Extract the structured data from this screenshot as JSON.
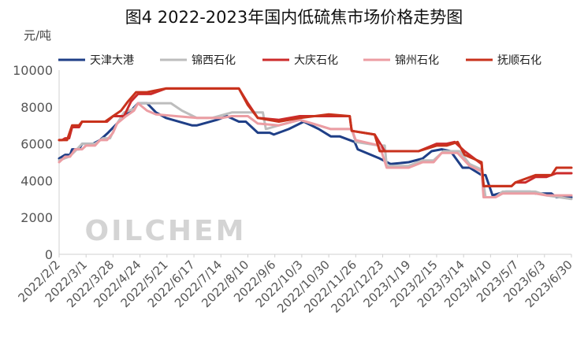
{
  "chart_data": {
    "type": "line",
    "title": "图4 2022-2023年国内低硫焦市场价格走势图",
    "ylabel": "元/吨",
    "xlabel": "",
    "ylim": [
      0,
      10000
    ],
    "yticks": [
      0,
      2000,
      4000,
      6000,
      8000,
      10000
    ],
    "xlim": [
      "2022-02-02",
      "2023-06-30"
    ],
    "xticks": [
      "2022/2/2",
      "2022/3/1",
      "2022/3/28",
      "2022/4/24",
      "2022/5/21",
      "2022/6/17",
      "2022/7/14",
      "2022/8/10",
      "2022/9/6",
      "2022/10/3",
      "2022/10/30",
      "2022/11/26",
      "2022/12/23",
      "2023/1/19",
      "2023/2/15",
      "2023/3/14",
      "2023/4/10",
      "2023/5/7",
      "2023/6/3",
      "2023/6/30"
    ],
    "watermark": "OILCHEM",
    "legend_position": "top",
    "grid": false,
    "series": [
      {
        "name": "天津大港",
        "color": "#1f3f87",
        "points": [
          [
            "2022-02-02",
            5200
          ],
          [
            "2022-02-08",
            5400
          ],
          [
            "2022-02-13",
            5400
          ],
          [
            "2022-02-15",
            5700
          ],
          [
            "2022-02-22",
            5700
          ],
          [
            "2022-02-25",
            6000
          ],
          [
            "2022-03-08",
            6000
          ],
          [
            "2022-03-15",
            6200
          ],
          [
            "2022-03-23",
            6600
          ],
          [
            "2022-04-01",
            7100
          ],
          [
            "2022-04-08",
            7500
          ],
          [
            "2022-04-15",
            7800
          ],
          [
            "2022-04-22",
            8200
          ],
          [
            "2022-05-01",
            8200
          ],
          [
            "2022-05-10",
            7700
          ],
          [
            "2022-05-20",
            7400
          ],
          [
            "2022-06-15",
            7000
          ],
          [
            "2022-06-20",
            7000
          ],
          [
            "2022-07-10",
            7300
          ],
          [
            "2022-07-20",
            7500
          ],
          [
            "2022-08-01",
            7200
          ],
          [
            "2022-08-08",
            7200
          ],
          [
            "2022-08-20",
            6600
          ],
          [
            "2022-09-01",
            6600
          ],
          [
            "2022-09-05",
            6500
          ],
          [
            "2022-09-20",
            6800
          ],
          [
            "2022-10-05",
            7200
          ],
          [
            "2022-10-20",
            6800
          ],
          [
            "2022-11-01",
            6400
          ],
          [
            "2022-11-10",
            6400
          ],
          [
            "2022-11-25",
            6100
          ],
          [
            "2022-11-28",
            5700
          ],
          [
            "2022-12-20",
            5200
          ],
          [
            "2022-12-31",
            4900
          ],
          [
            "2023-01-18",
            5000
          ],
          [
            "2023-02-01",
            5200
          ],
          [
            "2023-02-10",
            5600
          ],
          [
            "2023-02-20",
            5700
          ],
          [
            "2023-03-01",
            5600
          ],
          [
            "2023-03-13",
            4700
          ],
          [
            "2023-03-20",
            4700
          ],
          [
            "2023-04-01",
            4300
          ],
          [
            "2023-04-05",
            4300
          ],
          [
            "2023-04-12",
            3200
          ],
          [
            "2023-04-25",
            3400
          ],
          [
            "2023-05-20",
            3400
          ],
          [
            "2023-05-25",
            3300
          ],
          [
            "2023-06-10",
            3300
          ],
          [
            "2023-06-15",
            3100
          ],
          [
            "2023-06-30",
            3100
          ]
        ]
      },
      {
        "name": "锦西石化",
        "color": "#bdbdbd",
        "points": [
          [
            "2022-02-02",
            5100
          ],
          [
            "2022-02-12",
            5300
          ],
          [
            "2022-02-18",
            5600
          ],
          [
            "2022-02-25",
            6000
          ],
          [
            "2022-03-10",
            6000
          ],
          [
            "2022-03-18",
            6300
          ],
          [
            "2022-03-25",
            6300
          ],
          [
            "2022-04-01",
            7100
          ],
          [
            "2022-04-08",
            7700
          ],
          [
            "2022-04-18",
            7900
          ],
          [
            "2022-04-22",
            8200
          ],
          [
            "2022-05-25",
            8200
          ],
          [
            "2022-06-05",
            7800
          ],
          [
            "2022-06-20",
            7400
          ],
          [
            "2022-07-05",
            7400
          ],
          [
            "2022-07-25",
            7700
          ],
          [
            "2022-08-25",
            7700
          ],
          [
            "2022-08-28",
            6800
          ],
          [
            "2022-09-10",
            7000
          ],
          [
            "2022-10-01",
            7300
          ],
          [
            "2022-11-01",
            6800
          ],
          [
            "2022-11-22",
            6800
          ],
          [
            "2022-11-26",
            6100
          ],
          [
            "2022-12-20",
            5900
          ],
          [
            "2022-12-25",
            5900
          ],
          [
            "2022-12-27",
            4800
          ],
          [
            "2023-01-18",
            4800
          ],
          [
            "2023-02-01",
            5100
          ],
          [
            "2023-02-12",
            5100
          ],
          [
            "2023-02-22",
            5600
          ],
          [
            "2023-03-10",
            5600
          ],
          [
            "2023-03-20",
            4900
          ],
          [
            "2023-04-01",
            4600
          ],
          [
            "2023-04-05",
            3100
          ],
          [
            "2023-04-15",
            3100
          ],
          [
            "2023-04-22",
            3400
          ],
          [
            "2023-05-25",
            3400
          ],
          [
            "2023-06-05",
            3200
          ],
          [
            "2023-06-30",
            3000
          ]
        ]
      },
      {
        "name": "大庆石化",
        "color": "#cc2b2b",
        "points": [
          [
            "2022-02-02",
            6200
          ],
          [
            "2022-02-05",
            6200
          ],
          [
            "2022-02-08",
            6300
          ],
          [
            "2022-02-12",
            6300
          ],
          [
            "2022-02-15",
            6900
          ],
          [
            "2022-02-22",
            6900
          ],
          [
            "2022-02-25",
            7200
          ],
          [
            "2022-03-22",
            7200
          ],
          [
            "2022-03-28",
            7500
          ],
          [
            "2022-04-08",
            7500
          ],
          [
            "2022-04-15",
            8300
          ],
          [
            "2022-04-22",
            8700
          ],
          [
            "2022-05-05",
            8700
          ],
          [
            "2022-05-20",
            9000
          ],
          [
            "2022-08-01",
            9000
          ],
          [
            "2022-08-10",
            8200
          ],
          [
            "2022-08-20",
            7400
          ],
          [
            "2022-09-10",
            7300
          ],
          [
            "2022-10-01",
            7500
          ],
          [
            "2022-10-30",
            7500
          ],
          [
            "2022-11-20",
            7500
          ],
          [
            "2022-11-22",
            6700
          ],
          [
            "2022-12-15",
            6500
          ],
          [
            "2022-12-25",
            5600
          ],
          [
            "2023-01-28",
            5600
          ],
          [
            "2023-02-15",
            6000
          ],
          [
            "2023-02-25",
            6000
          ],
          [
            "2023-03-05",
            6100
          ],
          [
            "2023-03-15",
            5600
          ],
          [
            "2023-04-01",
            4900
          ],
          [
            "2023-04-03",
            3700
          ],
          [
            "2023-05-01",
            3700
          ],
          [
            "2023-05-05",
            3900
          ],
          [
            "2023-05-15",
            3900
          ],
          [
            "2023-05-25",
            4200
          ],
          [
            "2023-06-05",
            4200
          ],
          [
            "2023-06-15",
            4400
          ],
          [
            "2023-06-30",
            4400
          ]
        ]
      },
      {
        "name": "锦州石化",
        "color": "#ec9da3",
        "points": [
          [
            "2022-02-02",
            5000
          ],
          [
            "2022-02-08",
            5300
          ],
          [
            "2022-02-13",
            5300
          ],
          [
            "2022-02-18",
            5700
          ],
          [
            "2022-02-25",
            5700
          ],
          [
            "2022-03-01",
            5900
          ],
          [
            "2022-03-10",
            5900
          ],
          [
            "2022-03-15",
            6200
          ],
          [
            "2022-03-22",
            6200
          ],
          [
            "2022-03-28",
            6600
          ],
          [
            "2022-04-01",
            7100
          ],
          [
            "2022-04-10",
            7500
          ],
          [
            "2022-04-18",
            7800
          ],
          [
            "2022-04-22",
            8200
          ],
          [
            "2022-05-01",
            7800
          ],
          [
            "2022-05-10",
            7600
          ],
          [
            "2022-05-30",
            7500
          ],
          [
            "2022-06-20",
            7400
          ],
          [
            "2022-07-15",
            7400
          ],
          [
            "2022-07-25",
            7500
          ],
          [
            "2022-08-10",
            7500
          ],
          [
            "2022-08-20",
            7100
          ],
          [
            "2022-09-10",
            7000
          ],
          [
            "2022-10-01",
            7300
          ],
          [
            "2022-10-20",
            7000
          ],
          [
            "2022-11-01",
            6800
          ],
          [
            "2022-11-22",
            6800
          ],
          [
            "2022-11-26",
            6200
          ],
          [
            "2022-12-20",
            5900
          ],
          [
            "2022-12-27",
            4700
          ],
          [
            "2023-01-18",
            4700
          ],
          [
            "2023-02-01",
            5000
          ],
          [
            "2023-02-12",
            5000
          ],
          [
            "2023-02-20",
            5500
          ],
          [
            "2023-03-08",
            5500
          ],
          [
            "2023-03-20",
            4800
          ],
          [
            "2023-04-01",
            4500
          ],
          [
            "2023-04-03",
            3100
          ],
          [
            "2023-04-15",
            3100
          ],
          [
            "2023-04-22",
            3300
          ],
          [
            "2023-05-25",
            3300
          ],
          [
            "2023-06-05",
            3200
          ],
          [
            "2023-06-30",
            3200
          ]
        ]
      },
      {
        "name": "抚顺石化",
        "color": "#c8321c",
        "points": [
          [
            "2022-02-02",
            6200
          ],
          [
            "2022-02-10",
            6200
          ],
          [
            "2022-02-15",
            7000
          ],
          [
            "2022-02-22",
            7000
          ],
          [
            "2022-02-25",
            7200
          ],
          [
            "2022-03-20",
            7200
          ],
          [
            "2022-03-28",
            7500
          ],
          [
            "2022-04-05",
            7800
          ],
          [
            "2022-04-12",
            8300
          ],
          [
            "2022-04-20",
            8800
          ],
          [
            "2022-05-01",
            8800
          ],
          [
            "2022-05-20",
            9000
          ],
          [
            "2022-08-01",
            9000
          ],
          [
            "2022-08-10",
            8100
          ],
          [
            "2022-08-20",
            7400
          ],
          [
            "2022-09-10",
            7200
          ],
          [
            "2022-10-01",
            7400
          ],
          [
            "2022-10-30",
            7600
          ],
          [
            "2022-11-20",
            7500
          ],
          [
            "2022-11-22",
            6700
          ],
          [
            "2022-12-15",
            6500
          ],
          [
            "2022-12-20",
            5600
          ],
          [
            "2023-01-28",
            5600
          ],
          [
            "2023-02-15",
            5900
          ],
          [
            "2023-02-25",
            5900
          ],
          [
            "2023-03-08",
            6100
          ],
          [
            "2023-03-15",
            5400
          ],
          [
            "2023-04-01",
            5000
          ],
          [
            "2023-04-03",
            3700
          ],
          [
            "2023-05-01",
            3700
          ],
          [
            "2023-05-05",
            3900
          ],
          [
            "2023-05-25",
            4300
          ],
          [
            "2023-06-10",
            4300
          ],
          [
            "2023-06-15",
            4700
          ],
          [
            "2023-06-30",
            4700
          ]
        ]
      }
    ]
  }
}
